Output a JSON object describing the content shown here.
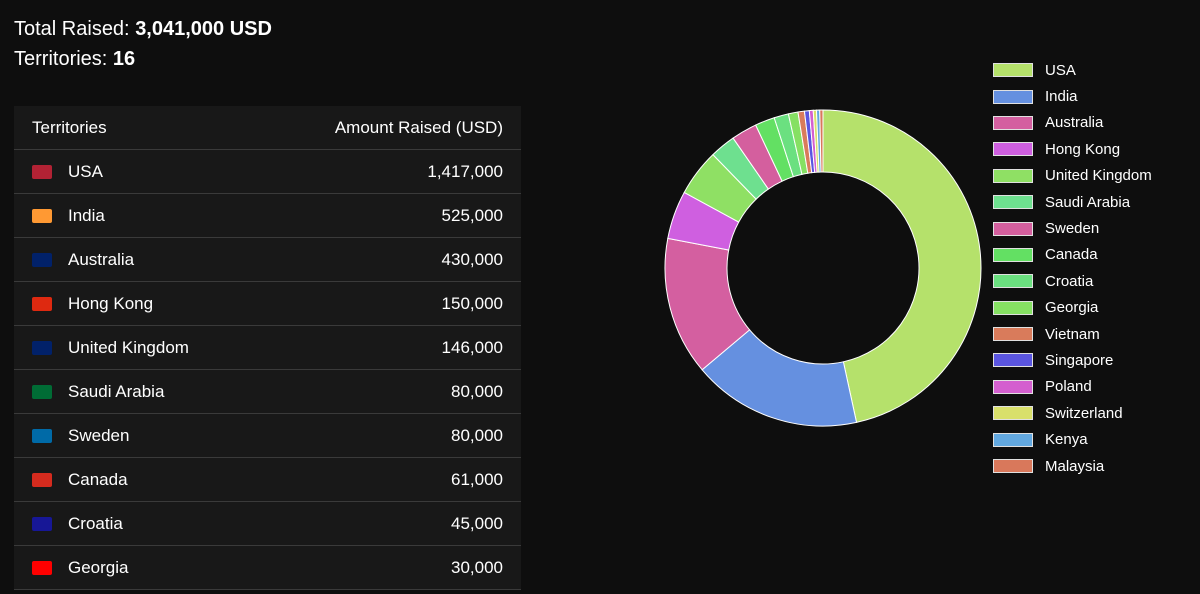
{
  "summary": {
    "total_label": "Total Raised:",
    "total_value": "3,041,000 USD",
    "territories_label": "Territories:",
    "territories_value": "16"
  },
  "table": {
    "headers": [
      "Territories",
      "Amount Raised (USD)"
    ],
    "rows": [
      {
        "name": "USA",
        "amount": "1,417,000",
        "flag": "us-flag-icon",
        "flag_color": "#b22234"
      },
      {
        "name": "India",
        "amount": "525,000",
        "flag": "in-flag-icon",
        "flag_color": "#ff9933"
      },
      {
        "name": "Australia",
        "amount": "430,000",
        "flag": "au-flag-icon",
        "flag_color": "#012169"
      },
      {
        "name": "Hong Kong",
        "amount": "150,000",
        "flag": "hk-flag-icon",
        "flag_color": "#de2910"
      },
      {
        "name": "United Kingdom",
        "amount": "146,000",
        "flag": "gb-flag-icon",
        "flag_color": "#012169"
      },
      {
        "name": "Saudi Arabia",
        "amount": "80,000",
        "flag": "sa-flag-icon",
        "flag_color": "#006c35"
      },
      {
        "name": "Sweden",
        "amount": "80,000",
        "flag": "se-flag-icon",
        "flag_color": "#006aa7"
      },
      {
        "name": "Canada",
        "amount": "61,000",
        "flag": "ca-flag-icon",
        "flag_color": "#d52b1e"
      },
      {
        "name": "Croatia",
        "amount": "45,000",
        "flag": "hr-flag-icon",
        "flag_color": "#171796"
      },
      {
        "name": "Georgia",
        "amount": "30,000",
        "flag": "ge-flag-icon",
        "flag_color": "#ff0000"
      }
    ]
  },
  "chart_data": {
    "type": "pie",
    "donut": true,
    "legend_position": "right",
    "categories": [
      "USA",
      "India",
      "Australia",
      "Hong Kong",
      "United Kingdom",
      "Saudi Arabia",
      "Sweden",
      "Canada",
      "Croatia",
      "Georgia",
      "Vietnam",
      "Singapore",
      "Poland",
      "Switzerland",
      "Kenya",
      "Malaysia"
    ],
    "values": [
      1417000,
      525000,
      430000,
      150000,
      146000,
      80000,
      80000,
      61000,
      45000,
      30000,
      20000,
      15000,
      12000,
      10000,
      10000,
      10000
    ],
    "colors": [
      "#b5e16b",
      "#6590e0",
      "#d45fa0",
      "#cf5fe0",
      "#8fe064",
      "#6ee08f",
      "#d45f9e",
      "#63e063",
      "#6be080",
      "#86e063",
      "#d97b5b",
      "#5a55e0",
      "#d45fcf",
      "#d9e06b",
      "#62a8e0",
      "#d9785b"
    ]
  }
}
